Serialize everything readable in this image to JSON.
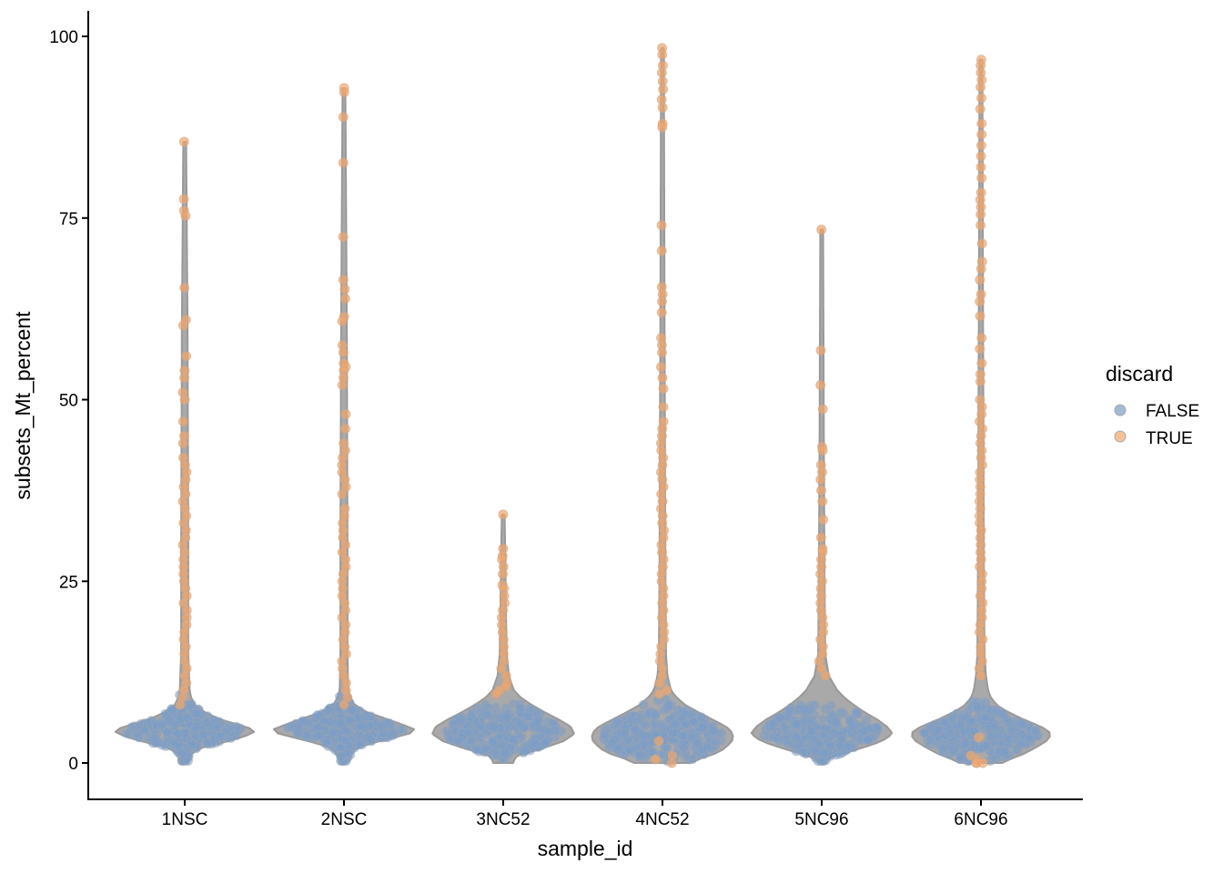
{
  "chart_data": {
    "type": "violin",
    "title": "",
    "xlabel": "sample_id",
    "ylabel": "subsets_Mt_percent",
    "categories": [
      "1NSC",
      "2NSC",
      "3NC52",
      "4NC52",
      "5NC96",
      "6NC96"
    ],
    "ylim": [
      -4.8,
      103.5
    ],
    "yticks": [
      0,
      25,
      50,
      75,
      100
    ],
    "ytick_labels": [
      "0",
      "25",
      "50",
      "75",
      "100"
    ],
    "grid": false,
    "legend": {
      "title": "discard",
      "position": "right",
      "entries": [
        {
          "label": "FALSE",
          "color": "#7a9cc8"
        },
        {
          "label": "TRUE",
          "color": "#f2a66b"
        }
      ]
    },
    "colors": {
      "false_points": "#7a9cc8",
      "true_points": "#f2a66b",
      "violin_fill": "#a9a9a9",
      "violin_outline": "#999999"
    },
    "series": [
      {
        "name": "1NSC",
        "min": 0,
        "max": 85.5,
        "mode": 4.4,
        "density": [
          [
            0,
            0.05
          ],
          [
            1,
            0.07
          ],
          [
            2,
            0.2
          ],
          [
            3,
            0.62
          ],
          [
            4,
            0.95
          ],
          [
            4.5,
            1.0
          ],
          [
            5,
            0.85
          ],
          [
            6,
            0.5
          ],
          [
            7,
            0.28
          ],
          [
            8,
            0.14
          ],
          [
            9,
            0.09
          ],
          [
            10,
            0.07
          ],
          [
            15,
            0.05
          ],
          [
            30,
            0.05
          ],
          [
            60,
            0.04
          ],
          [
            85.5,
            0.02
          ]
        ],
        "true_values": [
          85.5,
          77.6,
          76.0,
          75.3,
          65.4,
          61.0,
          60.2,
          56.0,
          54.0,
          53.0,
          51.0,
          50.0,
          47.0,
          45.0,
          44.0,
          42.0,
          41.0,
          40.0,
          39.0,
          38.0,
          37.0,
          36.0,
          35.0,
          34.0,
          33.0,
          32.0,
          31.0,
          30.0,
          29.0,
          28.0,
          27.0,
          26.0,
          25.0,
          24.0,
          23.0,
          22.0,
          21.0,
          20.0,
          19.0,
          18.0,
          17.0,
          16.0,
          15.0,
          14.0,
          13.0,
          12.0,
          11.0,
          10.0,
          9.0,
          8.0
        ]
      },
      {
        "name": "2NSC",
        "min": 0,
        "max": 92.9,
        "mode": 4.6,
        "density": [
          [
            0,
            0.05
          ],
          [
            1,
            0.1
          ],
          [
            2,
            0.15
          ],
          [
            3,
            0.5
          ],
          [
            4,
            0.92
          ],
          [
            4.6,
            1.0
          ],
          [
            5,
            0.9
          ],
          [
            6,
            0.62
          ],
          [
            7,
            0.32
          ],
          [
            8,
            0.15
          ],
          [
            9,
            0.09
          ],
          [
            10,
            0.06
          ],
          [
            15,
            0.05
          ],
          [
            30,
            0.05
          ],
          [
            60,
            0.04
          ],
          [
            92.9,
            0.02
          ]
        ],
        "true_values": [
          92.9,
          92.3,
          88.9,
          82.6,
          72.4,
          66.5,
          65.2,
          63.9,
          61.4,
          60.8,
          57.5,
          56.5,
          55.0,
          54.5,
          54.0,
          53.0,
          52.0,
          48.0,
          46.0,
          44.0,
          43.0,
          42.0,
          41.0,
          40.0,
          39.0,
          38.0,
          37.0,
          35.0,
          34.0,
          33.0,
          32.0,
          31.0,
          30.0,
          29.0,
          28.0,
          27.0,
          26.0,
          25.0,
          24.0,
          23.0,
          22.0,
          21.0,
          20.0,
          19.0,
          18.0,
          17.0,
          16.0,
          15.0,
          14.0,
          13.0,
          12.0,
          11.0,
          10.0,
          9.0,
          8.0
        ]
      },
      {
        "name": "3NC52",
        "min": 0,
        "max": 34.2,
        "mode": 4.0,
        "density": [
          [
            0,
            0.14
          ],
          [
            0.5,
            0.16
          ],
          [
            1,
            0.2
          ],
          [
            2,
            0.55
          ],
          [
            3,
            0.85
          ],
          [
            4,
            1.0
          ],
          [
            5,
            0.95
          ],
          [
            6,
            0.78
          ],
          [
            7,
            0.58
          ],
          [
            8,
            0.4
          ],
          [
            9,
            0.25
          ],
          [
            10,
            0.15
          ],
          [
            12,
            0.08
          ],
          [
            15,
            0.05
          ],
          [
            20,
            0.04
          ],
          [
            28,
            0.03
          ],
          [
            34.2,
            0.02
          ]
        ],
        "true_values": [
          34.2,
          29.5,
          28.5,
          28.0,
          27.0,
          26.0,
          24.5,
          24.0,
          23.0,
          22.0,
          21.0,
          20.0,
          19.0,
          18.0,
          17.0,
          16.0,
          15.0,
          14.0,
          13.0,
          12.0,
          11.0,
          10.5,
          10.0,
          9.5
        ]
      },
      {
        "name": "4NC52",
        "min": 0,
        "max": 98.4,
        "mode": 4.0,
        "density": [
          [
            0,
            0.4
          ],
          [
            0.5,
            0.5
          ],
          [
            1,
            0.68
          ],
          [
            2,
            0.88
          ],
          [
            3,
            0.98
          ],
          [
            4,
            1.0
          ],
          [
            5,
            0.9
          ],
          [
            6,
            0.7
          ],
          [
            7,
            0.5
          ],
          [
            8,
            0.32
          ],
          [
            9,
            0.2
          ],
          [
            10,
            0.12
          ],
          [
            12,
            0.07
          ],
          [
            15,
            0.05
          ],
          [
            30,
            0.04
          ],
          [
            60,
            0.03
          ],
          [
            98.4,
            0.02
          ]
        ],
        "true_values": [
          98.4,
          97.5,
          96.0,
          95.0,
          93.8,
          92.7,
          91.3,
          90.2,
          88.0,
          87.5,
          74.0,
          70.5,
          65.5,
          64.5,
          63.5,
          62.0,
          58.5,
          57.5,
          56.5,
          54.5,
          53.0,
          51.5,
          49.0,
          47.0,
          46.0,
          45.0,
          44.0,
          43.0,
          42.0,
          41.0,
          40.0,
          39.0,
          38.0,
          37.0,
          36.0,
          35.0,
          34.0,
          33.0,
          32.0,
          31.0,
          30.0,
          29.0,
          28.0,
          27.0,
          26.0,
          25.0,
          24.0,
          23.0,
          22.0,
          21.0,
          20.0,
          19.0,
          18.0,
          17.0,
          16.0,
          15.0,
          14.0,
          13.0,
          12.0,
          11.0,
          10.0,
          9.5,
          3.0,
          1.0,
          0.5,
          0.0
        ]
      },
      {
        "name": "5NC96",
        "min": 0,
        "max": 73.4,
        "mode": 4.0,
        "density": [
          [
            0,
            0.05
          ],
          [
            0.5,
            0.08
          ],
          [
            1,
            0.2
          ],
          [
            2,
            0.55
          ],
          [
            3,
            0.85
          ],
          [
            4,
            1.0
          ],
          [
            5,
            0.92
          ],
          [
            6,
            0.78
          ],
          [
            7,
            0.6
          ],
          [
            8,
            0.45
          ],
          [
            9,
            0.32
          ],
          [
            10,
            0.22
          ],
          [
            12,
            0.1
          ],
          [
            15,
            0.05
          ],
          [
            25,
            0.04
          ],
          [
            45,
            0.03
          ],
          [
            73.4,
            0.02
          ]
        ],
        "true_values": [
          73.4,
          56.8,
          52.0,
          48.7,
          43.5,
          43.0,
          41.0,
          40.0,
          39.0,
          37.5,
          36.0,
          33.5,
          31.0,
          29.5,
          29.0,
          28.0,
          27.0,
          26.0,
          25.0,
          24.0,
          23.0,
          22.0,
          21.0,
          20.0,
          19.0,
          18.0,
          17.0,
          16.0,
          15.0,
          14.0,
          13.0,
          12.0
        ]
      },
      {
        "name": "6NC96",
        "min": 0,
        "max": 96.8,
        "mode": 4.0,
        "density": [
          [
            0,
            0.3
          ],
          [
            0.5,
            0.4
          ],
          [
            1,
            0.55
          ],
          [
            2,
            0.75
          ],
          [
            3,
            0.92
          ],
          [
            4,
            1.0
          ],
          [
            5,
            0.85
          ],
          [
            6,
            0.6
          ],
          [
            7,
            0.38
          ],
          [
            8,
            0.22
          ],
          [
            9,
            0.14
          ],
          [
            10,
            0.1
          ],
          [
            12,
            0.07
          ],
          [
            15,
            0.05
          ],
          [
            30,
            0.04
          ],
          [
            60,
            0.03
          ],
          [
            96.8,
            0.02
          ]
        ],
        "true_values": [
          96.8,
          96.0,
          95.0,
          94.0,
          93.0,
          91.5,
          90.0,
          88.0,
          86.5,
          85.0,
          83.5,
          82.0,
          80.5,
          78.5,
          77.5,
          76.5,
          75.5,
          74.0,
          71.5,
          69.0,
          68.0,
          66.5,
          64.5,
          63.5,
          61.5,
          58.5,
          57.0,
          55.0,
          53.5,
          52.5,
          50.0,
          49.0,
          48.0,
          47.0,
          46.0,
          45.0,
          44.0,
          43.0,
          42.0,
          41.0,
          40.0,
          39.0,
          38.0,
          37.0,
          36.0,
          35.0,
          34.0,
          33.0,
          32.0,
          31.0,
          30.0,
          29.0,
          28.0,
          27.0,
          26.0,
          25.0,
          24.0,
          23.0,
          22.0,
          21.0,
          20.0,
          19.0,
          18.0,
          17.0,
          16.0,
          15.0,
          14.0,
          13.0,
          12.0,
          3.5,
          1.0,
          0.5,
          0.0,
          0.0,
          0.0
        ]
      }
    ]
  }
}
